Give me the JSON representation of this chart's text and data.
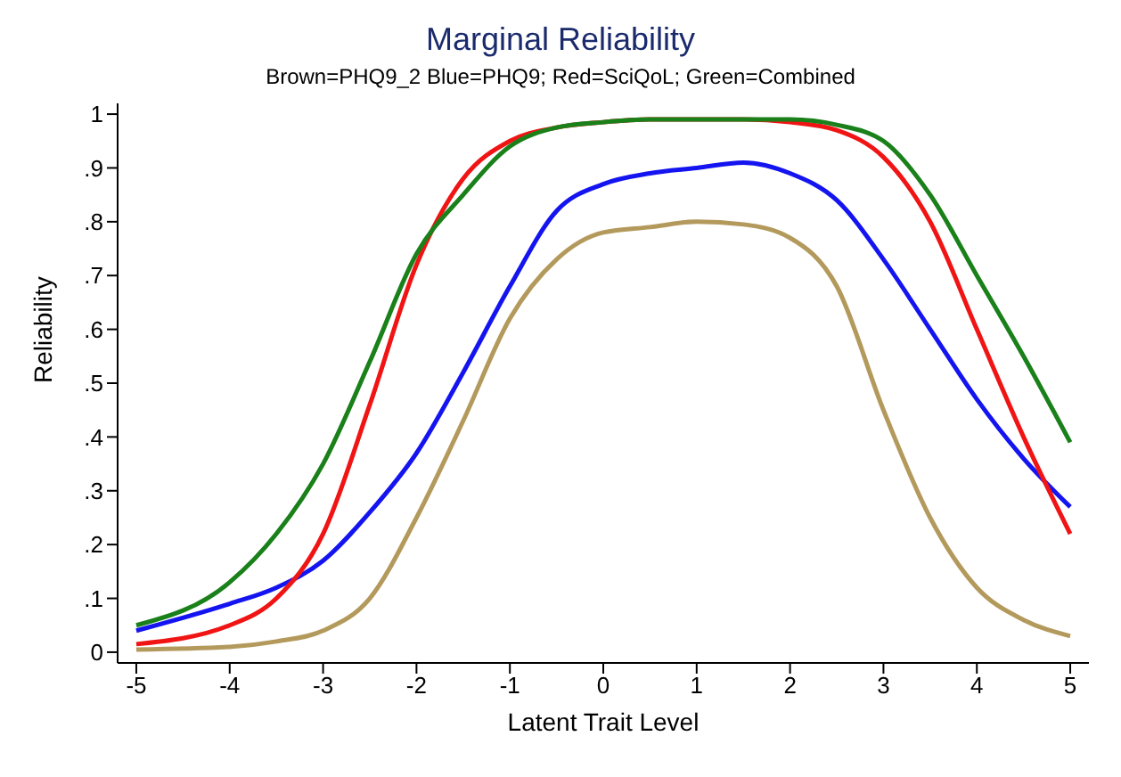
{
  "chart_data": {
    "type": "line",
    "title": "Marginal Reliability",
    "subtitle": "Brown=PHQ9_2 Blue=PHQ9; Red=SciQoL; Green=Combined",
    "xlabel": "Latent Trait Level",
    "ylabel": "Reliability",
    "x": [
      -5,
      -4,
      -3.5,
      -3,
      -2.5,
      -2,
      -1.5,
      -1,
      -0.5,
      0,
      0.5,
      1,
      1.5,
      2,
      2.5,
      3,
      3.5,
      4,
      4.5,
      5
    ],
    "series": [
      {
        "color": "#b39a5c",
        "values": [
          0.005,
          0.01,
          0.02,
          0.04,
          0.1,
          0.25,
          0.43,
          0.62,
          0.73,
          0.78,
          0.79,
          0.8,
          0.795,
          0.77,
          0.68,
          0.45,
          0.25,
          0.12,
          0.06,
          0.03
        ]
      },
      {
        "color": "#1414f0",
        "values": [
          0.04,
          0.09,
          0.12,
          0.17,
          0.26,
          0.37,
          0.52,
          0.68,
          0.82,
          0.87,
          0.89,
          0.9,
          0.91,
          0.89,
          0.84,
          0.73,
          0.6,
          0.47,
          0.36,
          0.27
        ]
      },
      {
        "color": "#f01414",
        "values": [
          0.015,
          0.05,
          0.1,
          0.22,
          0.46,
          0.72,
          0.88,
          0.95,
          0.975,
          0.985,
          0.99,
          0.99,
          0.99,
          0.985,
          0.97,
          0.92,
          0.8,
          0.6,
          0.4,
          0.22
        ]
      },
      {
        "color": "#1a801a",
        "values": [
          0.05,
          0.13,
          0.22,
          0.35,
          0.54,
          0.74,
          0.85,
          0.94,
          0.975,
          0.985,
          0.99,
          0.99,
          0.99,
          0.99,
          0.98,
          0.95,
          0.85,
          0.7,
          0.55,
          0.39
        ]
      }
    ],
    "xlim": [
      -5.2,
      5.2
    ],
    "xticks": [
      -5,
      -4,
      -3,
      -2,
      -1,
      0,
      1,
      2,
      3,
      4,
      5
    ],
    "ylim": [
      -0.02,
      1.02
    ],
    "yticks": [
      {
        "value": 0,
        "label": "0"
      },
      {
        "value": 0.1,
        "label": ".1"
      },
      {
        "value": 0.2,
        "label": ".2"
      },
      {
        "value": 0.3,
        "label": ".3"
      },
      {
        "value": 0.4,
        "label": ".4"
      },
      {
        "value": 0.5,
        "label": ".5"
      },
      {
        "value": 0.6,
        "label": ".6"
      },
      {
        "value": 0.7,
        "label": ".7"
      },
      {
        "value": 0.8,
        "label": ".8"
      },
      {
        "value": 0.9,
        "label": ".9"
      },
      {
        "value": 1,
        "label": "1"
      }
    ],
    "grid": false,
    "legend": false,
    "marker": "none",
    "line_style": "solid"
  }
}
